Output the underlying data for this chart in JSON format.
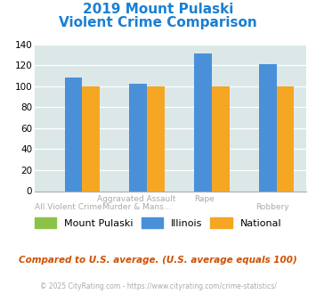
{
  "title_line1": "2019 Mount Pulaski",
  "title_line2": "Violent Crime Comparison",
  "illinois_data": [
    108,
    102,
    131,
    121
  ],
  "national_data": [
    100,
    100,
    100,
    100
  ],
  "mount_data": [
    0,
    0,
    0,
    0
  ],
  "color_mount": "#8bc34a",
  "color_illinois": "#4a90d9",
  "color_national": "#f5a623",
  "bg_color": "#dce8e8",
  "ylim": [
    0,
    140
  ],
  "yticks": [
    0,
    20,
    40,
    60,
    80,
    100,
    120,
    140
  ],
  "title_color": "#1a7fd4",
  "footnote": "Compared to U.S. average. (U.S. average equals 100)",
  "copyright": "© 2025 CityRating.com - https://www.cityrating.com/crime-statistics/",
  "legend_labels": [
    "Mount Pulaski",
    "Illinois",
    "National"
  ],
  "x_top_labels": [
    "",
    "Aggravated Assault",
    "Rape",
    ""
  ],
  "x_bot_labels": [
    "All Violent Crime",
    "Murder & Mans...",
    "",
    "Robbery"
  ]
}
